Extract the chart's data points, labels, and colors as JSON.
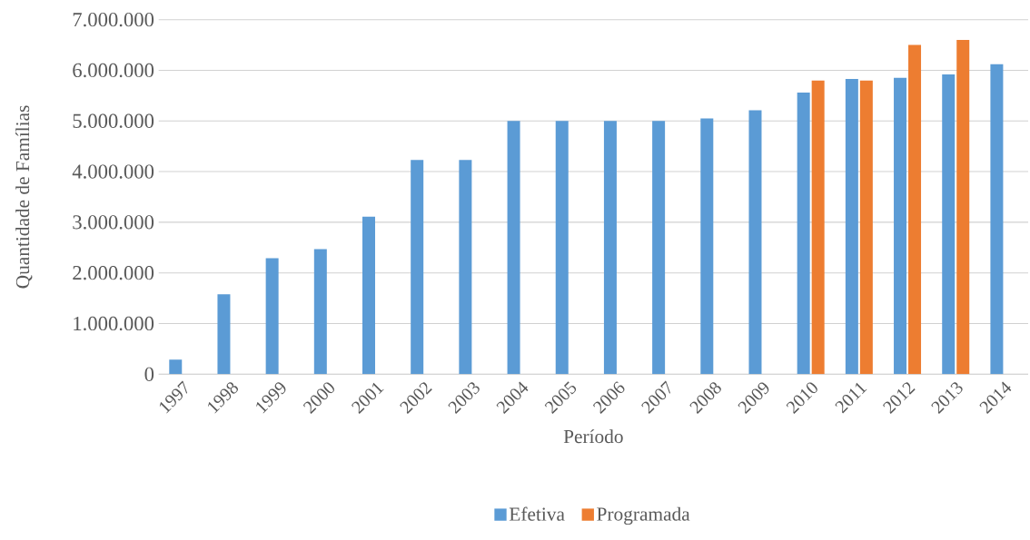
{
  "chart_data": {
    "type": "bar",
    "xlabel": "Período",
    "ylabel": "Quantidade de Famílias",
    "categories": [
      "1997",
      "1998",
      "1999",
      "2000",
      "2001",
      "2002",
      "2003",
      "2004",
      "2005",
      "2006",
      "2007",
      "2008",
      "2009",
      "2010",
      "2011",
      "2012",
      "2013",
      "2014"
    ],
    "series": [
      {
        "name": "Efetiva",
        "color": "#5b9bd5",
        "values": [
          290000,
          1580000,
          2290000,
          2470000,
          3110000,
          4230000,
          4230000,
          5000000,
          5000000,
          5000000,
          5000000,
          5050000,
          5210000,
          5560000,
          5830000,
          5850000,
          5920000,
          6120000
        ]
      },
      {
        "name": "Programada",
        "color": "#ed7d31",
        "values": [
          null,
          null,
          null,
          null,
          null,
          null,
          null,
          null,
          null,
          null,
          null,
          null,
          null,
          5800000,
          5800000,
          6500000,
          6600000,
          null
        ]
      }
    ],
    "ylim": [
      0,
      7000000
    ],
    "yticks": [
      {
        "value": 0,
        "label": "0"
      },
      {
        "value": 1000000,
        "label": "1.000.000"
      },
      {
        "value": 2000000,
        "label": "2.000.000"
      },
      {
        "value": 3000000,
        "label": "3.000.000"
      },
      {
        "value": 4000000,
        "label": "4.000.000"
      },
      {
        "value": 5000000,
        "label": "5.000.000"
      },
      {
        "value": 6000000,
        "label": "6.000.000"
      },
      {
        "value": 7000000,
        "label": "7.000.000"
      }
    ],
    "grid": "y",
    "legend": "bottom"
  }
}
